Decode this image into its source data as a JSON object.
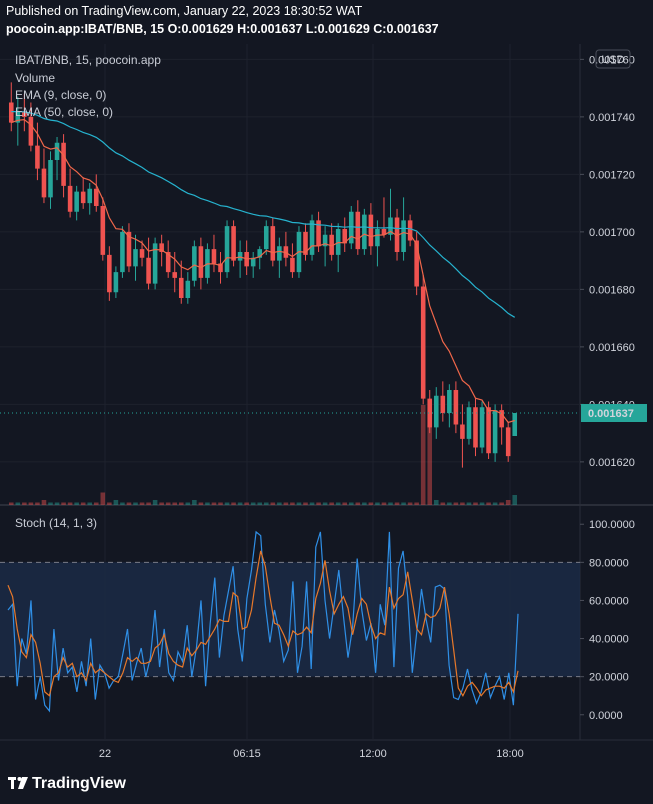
{
  "header": {
    "published": "Published on TradingView.com, January 22, 2023 18:30:52 WAT",
    "symbol_line": "poocoin.app:IBAT/BNB, 15  O:0.001629 H:0.001637 L:0.001629 C:0.001637"
  },
  "footer": {
    "brand": "TradingView"
  },
  "colors": {
    "bg": "#131722",
    "up": "#26a69a",
    "down": "#ef5350",
    "ema9": "#f0674a",
    "ema50": "#26b3cf",
    "stoch_k": "#2f8fe6",
    "stoch_d": "#e7782a"
  },
  "chart_data": [
    {
      "type": "candlestick",
      "title": "IBAT/BNB, 15, poocoin.app",
      "legend": [
        "Volume",
        "EMA (9, close, 0)",
        "EMA (50, close, 0)"
      ],
      "currency": "USD",
      "y_ticks": [
        "0.001760",
        "0.001740",
        "0.001720",
        "0.001700",
        "0.001680",
        "0.001660",
        "0.001640",
        "0.001620"
      ],
      "ylim": [
        0.001605,
        0.001765
      ],
      "last_price": "0.001637",
      "x_ticks": [
        "22",
        "06:15",
        "12:00",
        "18:00"
      ],
      "candles": [
        [
          0.001745,
          0.001752,
          0.001735,
          0.001738
        ],
        [
          0.001738,
          0.001747,
          0.00173,
          0.001742
        ],
        [
          0.001742,
          0.001748,
          0.001735,
          0.00174
        ],
        [
          0.00174,
          0.001745,
          0.001728,
          0.00173
        ],
        [
          0.00173,
          0.001738,
          0.001718,
          0.001722
        ],
        [
          0.001722,
          0.001729,
          0.00171,
          0.001712
        ],
        [
          0.001712,
          0.001728,
          0.001708,
          0.001725
        ],
        [
          0.001725,
          0.001733,
          0.001718,
          0.001731
        ],
        [
          0.001731,
          0.001734,
          0.001712,
          0.001716
        ],
        [
          0.001716,
          0.001722,
          0.001705,
          0.001707
        ],
        [
          0.001707,
          0.001716,
          0.001704,
          0.001714
        ],
        [
          0.001714,
          0.001719,
          0.001708,
          0.00171
        ],
        [
          0.00171,
          0.001717,
          0.001706,
          0.001715
        ],
        [
          0.001715,
          0.00172,
          0.001707,
          0.001709
        ],
        [
          0.001709,
          0.001712,
          0.00169,
          0.001692
        ],
        [
          0.001692,
          0.001695,
          0.001676,
          0.001679
        ],
        [
          0.001679,
          0.001688,
          0.001677,
          0.001686
        ],
        [
          0.001686,
          0.001702,
          0.001684,
          0.0017
        ],
        [
          0.0017,
          0.001703,
          0.001686,
          0.001688
        ],
        [
          0.001688,
          0.001699,
          0.001683,
          0.001694
        ],
        [
          0.001694,
          0.001697,
          0.001688,
          0.001691
        ],
        [
          0.001691,
          0.001698,
          0.00168,
          0.001682
        ],
        [
          0.001682,
          0.001698,
          0.00168,
          0.001696
        ],
        [
          0.001696,
          0.001699,
          0.001688,
          0.001693
        ],
        [
          0.001693,
          0.001697,
          0.001684,
          0.001686
        ],
        [
          0.001686,
          0.001693,
          0.001679,
          0.001684
        ],
        [
          0.001684,
          0.00169,
          0.001675,
          0.001677
        ],
        [
          0.001677,
          0.001686,
          0.001675,
          0.001683
        ],
        [
          0.001683,
          0.001697,
          0.001681,
          0.001695
        ],
        [
          0.001695,
          0.001698,
          0.00168,
          0.001684
        ],
        [
          0.001684,
          0.001696,
          0.001682,
          0.001694
        ],
        [
          0.001694,
          0.001699,
          0.001686,
          0.001689
        ],
        [
          0.001689,
          0.001693,
          0.001682,
          0.001686
        ],
        [
          0.001686,
          0.001704,
          0.001684,
          0.001702
        ],
        [
          0.001702,
          0.001704,
          0.001688,
          0.00169
        ],
        [
          0.00169,
          0.001697,
          0.001684,
          0.001693
        ],
        [
          0.001693,
          0.001697,
          0.001685,
          0.001688
        ],
        [
          0.001688,
          0.001693,
          0.001684,
          0.001691
        ],
        [
          0.001691,
          0.001695,
          0.001687,
          0.001694
        ],
        [
          0.001694,
          0.001704,
          0.001692,
          0.001702
        ],
        [
          0.001702,
          0.001705,
          0.001688,
          0.00169
        ],
        [
          0.00169,
          0.001698,
          0.001684,
          0.001695
        ],
        [
          0.001695,
          0.0017,
          0.001688,
          0.001691
        ],
        [
          0.001691,
          0.001696,
          0.001684,
          0.001686
        ],
        [
          0.001686,
          0.001702,
          0.001684,
          0.0017
        ],
        [
          0.0017,
          0.001703,
          0.00169,
          0.001692
        ],
        [
          0.001692,
          0.001706,
          0.00169,
          0.001704
        ],
        [
          0.001704,
          0.001707,
          0.001693,
          0.001695
        ],
        [
          0.001695,
          0.001702,
          0.001688,
          0.001699
        ],
        [
          0.001699,
          0.001703,
          0.00169,
          0.001692
        ],
        [
          0.001692,
          0.001703,
          0.001686,
          0.001701
        ],
        [
          0.001701,
          0.001705,
          0.001693,
          0.001696
        ],
        [
          0.001696,
          0.001709,
          0.001694,
          0.001707
        ],
        [
          0.001707,
          0.001711,
          0.001692,
          0.001694
        ],
        [
          0.001694,
          0.001708,
          0.001692,
          0.001706
        ],
        [
          0.001706,
          0.00171,
          0.001692,
          0.001695
        ],
        [
          0.001695,
          0.001704,
          0.001688,
          0.001701
        ],
        [
          0.001701,
          0.001712,
          0.001698,
          0.001699
        ],
        [
          0.001699,
          0.001715,
          0.001697,
          0.001705
        ],
        [
          0.001705,
          0.001708,
          0.00169,
          0.001693
        ],
        [
          0.001693,
          0.001712,
          0.00169,
          0.001704
        ],
        [
          0.001704,
          0.001706,
          0.001695,
          0.001697
        ],
        [
          0.001697,
          0.0017,
          0.001678,
          0.001681
        ],
        [
          0.001681,
          0.001685,
          0.00164,
          0.001642
        ],
        [
          0.001642,
          0.001645,
          0.00163,
          0.001632
        ],
        [
          0.001632,
          0.001646,
          0.001628,
          0.001643
        ],
        [
          0.001643,
          0.001648,
          0.001634,
          0.001637
        ],
        [
          0.001637,
          0.001647,
          0.001632,
          0.001645
        ],
        [
          0.001645,
          0.001648,
          0.00163,
          0.001633
        ],
        [
          0.001633,
          0.00164,
          0.001618,
          0.001628
        ],
        [
          0.001628,
          0.001641,
          0.001626,
          0.001639
        ],
        [
          0.001639,
          0.001642,
          0.001622,
          0.001625
        ],
        [
          0.001625,
          0.001641,
          0.001623,
          0.001639
        ],
        [
          0.001639,
          0.001641,
          0.001621,
          0.001623
        ],
        [
          0.001623,
          0.00164,
          0.00162,
          0.001638
        ],
        [
          0.001638,
          0.00164,
          0.001626,
          0.001632
        ],
        [
          0.001632,
          0.001634,
          0.00162,
          0.001622
        ],
        [
          0.001629,
          0.001637,
          0.001629,
          0.001637
        ]
      ],
      "volume": [
        1,
        1,
        1,
        1,
        1,
        2,
        1,
        1,
        1,
        1,
        1,
        1,
        1,
        1,
        5,
        1,
        2,
        1,
        1,
        1,
        1,
        1,
        2,
        1,
        1,
        1,
        1,
        1,
        2,
        1,
        1,
        1,
        1,
        1,
        1,
        1,
        1,
        1,
        1,
        1,
        1,
        1,
        1,
        1,
        1,
        1,
        1,
        1,
        1,
        1,
        1,
        1,
        1,
        1,
        1,
        1,
        1,
        1,
        1,
        1,
        1,
        1,
        1,
        40,
        32,
        2,
        1,
        1,
        1,
        1,
        1,
        1,
        1,
        1,
        1,
        1,
        2,
        4
      ]
    },
    {
      "type": "line",
      "title": "Stoch (14, 1, 3)",
      "y_ticks": [
        "100.0000",
        "80.0000",
        "60.0000",
        "40.0000",
        "20.0000",
        "0.0000"
      ],
      "ylim": [
        -8,
        108
      ],
      "bands": [
        20,
        80
      ],
      "series": [
        {
          "name": "%K",
          "values": [
            55,
            58,
            15,
            40,
            32,
            60,
            8,
            20,
            5,
            2,
            45,
            18,
            35,
            22,
            25,
            12,
            28,
            15,
            40,
            8,
            26,
            22,
            14,
            18,
            20,
            32,
            45,
            18,
            27,
            35,
            20,
            30,
            55,
            25,
            45,
            22,
            18,
            33,
            28,
            47,
            20,
            35,
            60,
            15,
            48,
            72,
            30,
            52,
            65,
            78,
            45,
            28,
            61,
            76,
            96,
            94,
            58,
            38,
            55,
            44,
            28,
            34,
            70,
            22,
            36,
            70,
            24,
            88,
            96,
            60,
            40,
            58,
            76,
            52,
            30,
            46,
            82,
            55,
            39,
            48,
            22,
            58,
            47,
            96,
            25,
            77,
            86,
            62,
            22,
            44,
            66,
            50,
            38,
            67,
            68,
            66,
            26,
            9,
            8,
            14,
            24,
            13,
            6,
            12,
            22,
            9,
            15,
            20,
            8,
            22,
            5,
            53
          ]
        },
        {
          "name": "%D",
          "values": [
            68,
            62,
            45,
            33,
            30,
            42,
            38,
            27,
            12,
            10,
            20,
            22,
            30,
            25,
            27,
            20,
            22,
            18,
            27,
            22,
            24,
            22,
            20,
            18,
            17,
            22,
            30,
            28,
            30,
            27,
            27,
            28,
            35,
            37,
            42,
            32,
            28,
            26,
            25,
            35,
            31,
            34,
            38,
            37,
            41,
            45,
            50,
            49,
            49,
            64,
            62,
            45,
            46,
            55,
            72,
            86,
            78,
            62,
            48,
            47,
            42,
            36,
            44,
            42,
            43,
            46,
            43,
            61,
            69,
            81,
            65,
            53,
            58,
            62,
            56,
            42,
            53,
            61,
            58,
            47,
            40,
            43,
            42,
            67,
            56,
            61,
            63,
            75,
            60,
            45,
            42,
            53,
            51,
            52,
            56,
            67,
            53,
            34,
            14,
            10,
            15,
            17,
            14,
            10,
            13,
            14,
            15,
            15,
            14,
            17,
            12,
            23
          ]
        }
      ]
    }
  ]
}
